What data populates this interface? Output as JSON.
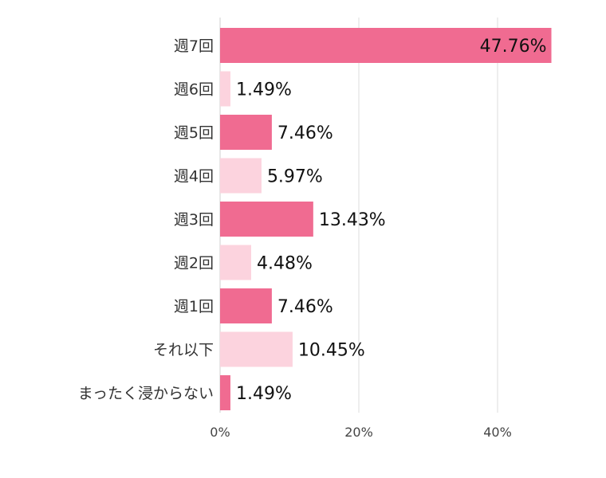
{
  "chart_data": {
    "type": "bar",
    "orientation": "horizontal",
    "title": "",
    "xlabel": "",
    "ylabel": "",
    "categories": [
      "週7回",
      "週6回",
      "週5回",
      "週4回",
      "週3回",
      "週2回",
      "週1回",
      "それ以下",
      "まったく浸からない"
    ],
    "values": [
      47.76,
      1.49,
      7.46,
      5.97,
      13.43,
      4.48,
      7.46,
      10.45,
      1.49
    ],
    "value_labels": [
      "47.76%",
      "1.49%",
      "7.46%",
      "5.97%",
      "13.43%",
      "4.48%",
      "7.46%",
      "10.45%",
      "1.49%"
    ],
    "xlim": [
      0,
      50
    ],
    "xticks": [
      0,
      20,
      40
    ],
    "xtick_labels": [
      "0%",
      "20%",
      "40%"
    ],
    "grid": true,
    "legend": "none",
    "colors": {
      "primary": "#f06b91",
      "secondary": "#fcd3de"
    }
  }
}
